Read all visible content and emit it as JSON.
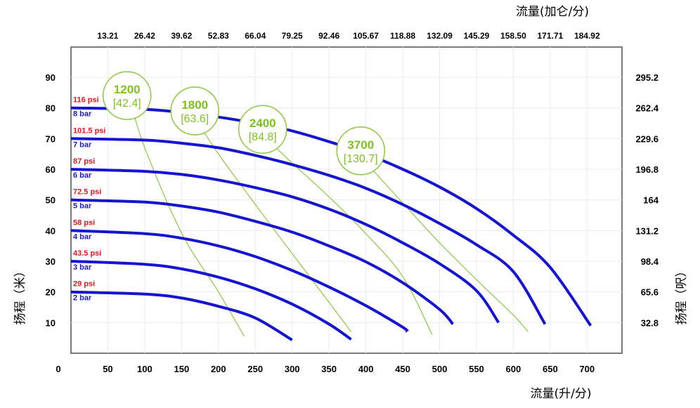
{
  "chart_data": {
    "type": "line",
    "top_axis_label": "流量(加仑/分)",
    "bottom_axis_label": "流量(升/分)",
    "left_axis_label": "扬程（米）",
    "right_axis_label": "扬程（呎）",
    "xlim": [
      0,
      740
    ],
    "ylim": [
      0,
      100
    ],
    "x_ticks": [
      {
        "value": 0,
        "label": "0"
      },
      {
        "value": 50,
        "label": "50"
      },
      {
        "value": 100,
        "label": "100"
      },
      {
        "value": 150,
        "label": "150"
      },
      {
        "value": 200,
        "label": "200"
      },
      {
        "value": 250,
        "label": "250"
      },
      {
        "value": 300,
        "label": "300"
      },
      {
        "value": 350,
        "label": "350"
      },
      {
        "value": 400,
        "label": "400"
      },
      {
        "value": 450,
        "label": "450"
      },
      {
        "value": 500,
        "label": "500"
      },
      {
        "value": 550,
        "label": "550"
      },
      {
        "value": 600,
        "label": "600"
      },
      {
        "value": 650,
        "label": "650"
      },
      {
        "value": 700,
        "label": "700"
      }
    ],
    "top_ticks": [
      {
        "value": 50,
        "label": "13.21"
      },
      {
        "value": 100,
        "label": "26.42"
      },
      {
        "value": 150,
        "label": "39.62"
      },
      {
        "value": 200,
        "label": "52.83"
      },
      {
        "value": 250,
        "label": "66.04"
      },
      {
        "value": 300,
        "label": "79.25"
      },
      {
        "value": 350,
        "label": "92.46"
      },
      {
        "value": 400,
        "label": "105.67"
      },
      {
        "value": 450,
        "label": "118.88"
      },
      {
        "value": 500,
        "label": "132.09"
      },
      {
        "value": 550,
        "label": "145.29"
      },
      {
        "value": 600,
        "label": "158.50"
      },
      {
        "value": 650,
        "label": "171.71"
      },
      {
        "value": 700,
        "label": "184.92"
      }
    ],
    "y_ticks": [
      {
        "value": 10,
        "label": "10"
      },
      {
        "value": 20,
        "label": "20"
      },
      {
        "value": 30,
        "label": "30"
      },
      {
        "value": 40,
        "label": "40"
      },
      {
        "value": 50,
        "label": "50"
      },
      {
        "value": 60,
        "label": "60"
      },
      {
        "value": 70,
        "label": "70"
      },
      {
        "value": 80,
        "label": "80"
      },
      {
        "value": 90,
        "label": "90"
      }
    ],
    "right_ticks": [
      {
        "value": 10,
        "label": "32.8"
      },
      {
        "value": 20,
        "label": "65.6"
      },
      {
        "value": 30,
        "label": "98.4"
      },
      {
        "value": 40,
        "label": "131.2"
      },
      {
        "value": 50,
        "label": "164"
      },
      {
        "value": 60,
        "label": "196.8"
      },
      {
        "value": 70,
        "label": "229.6"
      },
      {
        "value": 80,
        "label": "262.4"
      },
      {
        "value": 90,
        "label": "295.2"
      }
    ],
    "grid": true,
    "curve_color": "#1414d2",
    "speed_line_color": "#8cc83c",
    "series": [
      {
        "psi_label": "29 psi",
        "bar_label": "2 bar",
        "points": [
          [
            0,
            20
          ],
          [
            100,
            19.3
          ],
          [
            150,
            18
          ],
          [
            200,
            15.3
          ],
          [
            250,
            11.5
          ],
          [
            300,
            4.3
          ]
        ]
      },
      {
        "psi_label": "43.5 psi",
        "bar_label": "3 bar",
        "points": [
          [
            0,
            30
          ],
          [
            100,
            29
          ],
          [
            150,
            27.5
          ],
          [
            200,
            24.8
          ],
          [
            250,
            21
          ],
          [
            300,
            16
          ],
          [
            350,
            9.5
          ],
          [
            380,
            4.5
          ]
        ]
      },
      {
        "psi_label": "58 psi",
        "bar_label": "4 bar",
        "points": [
          [
            0,
            40
          ],
          [
            100,
            39
          ],
          [
            150,
            37.5
          ],
          [
            200,
            35
          ],
          [
            250,
            31.5
          ],
          [
            300,
            27
          ],
          [
            350,
            21.6
          ],
          [
            400,
            15.5
          ],
          [
            450,
            8.5
          ],
          [
            456,
            7
          ]
        ]
      },
      {
        "psi_label": "72.5 psi",
        "bar_label": "5 bar",
        "points": [
          [
            0,
            50
          ],
          [
            100,
            49.3
          ],
          [
            150,
            48
          ],
          [
            200,
            46
          ],
          [
            250,
            43
          ],
          [
            300,
            39.5
          ],
          [
            350,
            35
          ],
          [
            400,
            29.8
          ],
          [
            450,
            23
          ],
          [
            500,
            14.3
          ],
          [
            518,
            9.5
          ]
        ]
      },
      {
        "psi_label": "87 psi",
        "bar_label": "6 bar",
        "points": [
          [
            0,
            60
          ],
          [
            100,
            59.3
          ],
          [
            150,
            58.3
          ],
          [
            200,
            56.5
          ],
          [
            250,
            54
          ],
          [
            300,
            51
          ],
          [
            350,
            47
          ],
          [
            400,
            42
          ],
          [
            450,
            36
          ],
          [
            500,
            29.2
          ],
          [
            550,
            20.4
          ],
          [
            580,
            10
          ]
        ]
      },
      {
        "psi_label": "101.5 psi",
        "bar_label": "7 bar",
        "points": [
          [
            0,
            70
          ],
          [
            100,
            69.5
          ],
          [
            150,
            68.5
          ],
          [
            200,
            67
          ],
          [
            250,
            64.5
          ],
          [
            300,
            61.5
          ],
          [
            350,
            58
          ],
          [
            400,
            53.8
          ],
          [
            450,
            48.5
          ],
          [
            500,
            42.3
          ],
          [
            550,
            35.4
          ],
          [
            600,
            26.6
          ],
          [
            643,
            9.5
          ]
        ]
      },
      {
        "psi_label": "116 psi",
        "bar_label": "8 bar",
        "points": [
          [
            0,
            80
          ],
          [
            100,
            79.5
          ],
          [
            150,
            78.5
          ],
          [
            200,
            77
          ],
          [
            250,
            75
          ],
          [
            300,
            72.5
          ],
          [
            350,
            69
          ],
          [
            400,
            65
          ],
          [
            450,
            60
          ],
          [
            500,
            54.2
          ],
          [
            550,
            47.2
          ],
          [
            600,
            38.5
          ],
          [
            650,
            28
          ],
          [
            705,
            9
          ]
        ]
      }
    ],
    "speed_lines": [
      {
        "rpm": "1200",
        "lpm": "[42.4]",
        "center": [
          76,
          84
        ],
        "points": [
          [
            82,
            81
          ],
          [
            100,
            67
          ],
          [
            150,
            39.2
          ],
          [
            200,
            20
          ],
          [
            235,
            5.5
          ]
        ]
      },
      {
        "rpm": "1800",
        "lpm": "[63.6]",
        "center": [
          168,
          79
        ],
        "points": [
          [
            170,
            76
          ],
          [
            200,
            65
          ],
          [
            250,
            48.5
          ],
          [
            300,
            32.5
          ],
          [
            350,
            16.6
          ],
          [
            380,
            7
          ]
        ]
      },
      {
        "rpm": "2400",
        "lpm": "[84.8]",
        "center": [
          260,
          73
        ],
        "points": [
          [
            265,
            70
          ],
          [
            300,
            62
          ],
          [
            350,
            51
          ],
          [
            400,
            39
          ],
          [
            450,
            25
          ],
          [
            490,
            6
          ]
        ]
      },
      {
        "rpm": "3700",
        "lpm": "[130.7]",
        "center": [
          393,
          66
        ],
        "points": [
          [
            397,
            63
          ],
          [
            450,
            49
          ],
          [
            500,
            36
          ],
          [
            550,
            24
          ],
          [
            600,
            12.4
          ],
          [
            620,
            7
          ]
        ]
      }
    ]
  }
}
